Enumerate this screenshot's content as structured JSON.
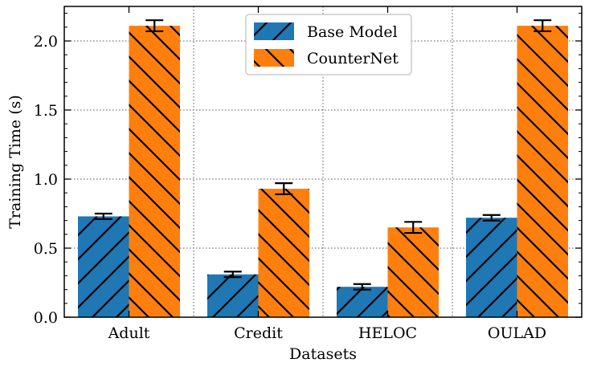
{
  "chart_data": {
    "type": "bar",
    "xlabel": "Datasets",
    "ylabel": "Training Time (s)",
    "categories": [
      "Adult",
      "Credit",
      "HELOC",
      "OULAD"
    ],
    "ylim": [
      0,
      2.25
    ],
    "yticks": [
      0.0,
      0.5,
      1.0,
      1.5,
      2.0
    ],
    "ytick_labels": [
      "0.0",
      "0.5",
      "1.0",
      "1.5",
      "2.0"
    ],
    "grid": true,
    "legend_position": "top-center",
    "series": [
      {
        "name": "Base Model",
        "color": "#1f77b4",
        "hatch": "forward-diagonal",
        "values": [
          0.73,
          0.31,
          0.22,
          0.72
        ],
        "errors": [
          0.02,
          0.02,
          0.02,
          0.02
        ]
      },
      {
        "name": "CounterNet",
        "color": "#ff7f0e",
        "hatch": "back-diagonal",
        "values": [
          2.11,
          0.93,
          0.65,
          2.11
        ],
        "errors": [
          0.04,
          0.04,
          0.04,
          0.04
        ]
      }
    ]
  }
}
